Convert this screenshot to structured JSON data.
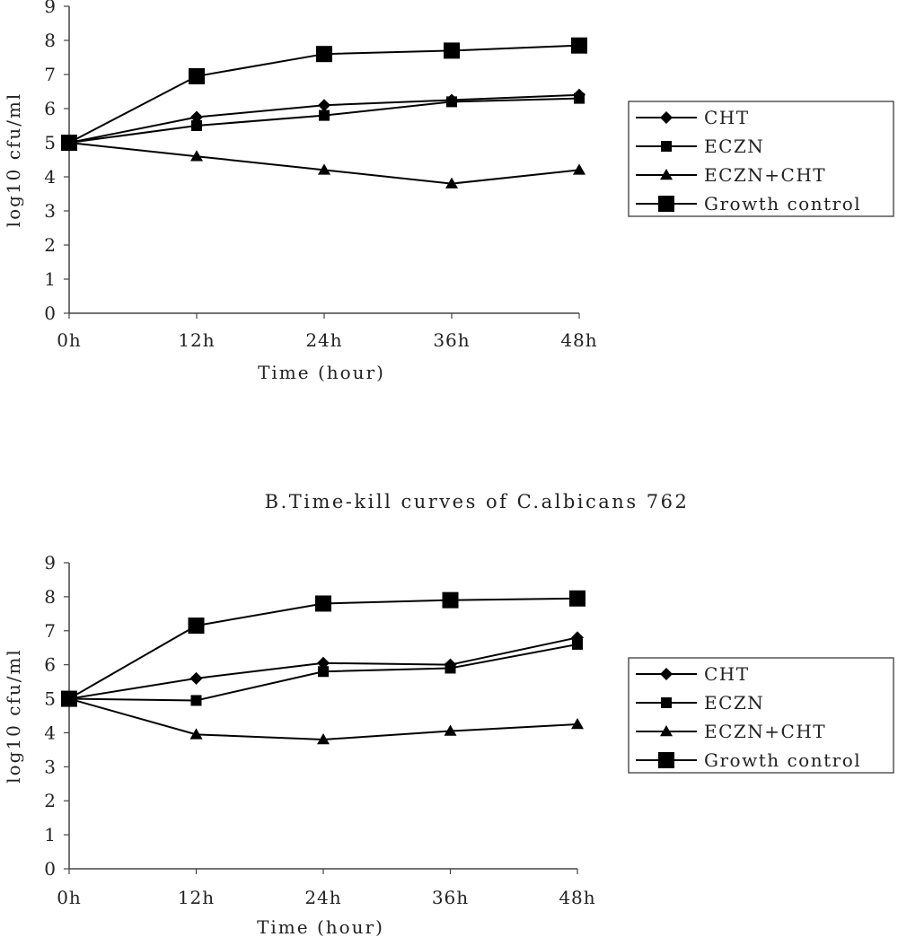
{
  "chart_data": [
    {
      "type": "line",
      "title": "",
      "xlabel": "Time (hour)",
      "ylabel": "log10 cfu/ml",
      "categories": [
        "0h",
        "12h",
        "24h",
        "36h",
        "48h"
      ],
      "ylim": [
        0,
        9
      ],
      "yticks": [
        0,
        1,
        2,
        3,
        4,
        5,
        6,
        7,
        8,
        9
      ],
      "grid": false,
      "legend": "right",
      "series": [
        {
          "name": "CHT",
          "marker": "diamond",
          "values": [
            5.0,
            5.75,
            6.1,
            6.25,
            6.4
          ]
        },
        {
          "name": "ECZN",
          "marker": "square",
          "values": [
            5.0,
            5.5,
            5.8,
            6.2,
            6.3
          ]
        },
        {
          "name": "ECZN+CHT",
          "marker": "triangle",
          "values": [
            5.0,
            4.6,
            4.2,
            3.8,
            4.2
          ]
        },
        {
          "name": "Growth control",
          "marker": "big-square",
          "values": [
            5.0,
            6.95,
            7.6,
            7.7,
            7.85
          ]
        }
      ]
    },
    {
      "type": "line",
      "title": "B.Time-kill curves of C.albicans 762",
      "xlabel": "Time (hour)",
      "ylabel": "log10 cfu/ml",
      "categories": [
        "0h",
        "12h",
        "24h",
        "36h",
        "48h"
      ],
      "ylim": [
        0,
        9
      ],
      "yticks": [
        0,
        1,
        2,
        3,
        4,
        5,
        6,
        7,
        8,
        9
      ],
      "grid": false,
      "legend": "right",
      "series": [
        {
          "name": "CHT",
          "marker": "diamond",
          "values": [
            5.0,
            5.6,
            6.05,
            6.0,
            6.8
          ]
        },
        {
          "name": "ECZN",
          "marker": "square",
          "values": [
            5.0,
            4.95,
            5.8,
            5.9,
            6.6
          ]
        },
        {
          "name": "ECZN+CHT",
          "marker": "triangle",
          "values": [
            5.0,
            3.95,
            3.8,
            4.05,
            4.25
          ]
        },
        {
          "name": "Growth control",
          "marker": "big-square",
          "values": [
            5.0,
            7.15,
            7.8,
            7.9,
            7.95
          ]
        }
      ]
    }
  ]
}
